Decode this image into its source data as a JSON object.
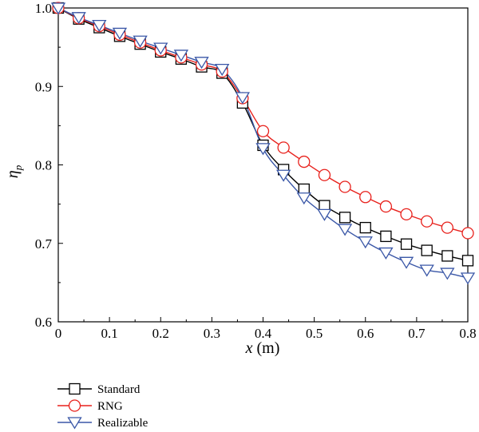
{
  "chart_data": {
    "type": "line",
    "xlabel_italic": "x",
    "xlabel_unit": " (m)",
    "ylabel_base": "η",
    "ylabel_sub": "p",
    "xlim": [
      0,
      0.8
    ],
    "ylim": [
      0.6,
      1.0
    ],
    "x_ticks": [
      "0",
      "0.1",
      "0.2",
      "0.3",
      "0.4",
      "0.5",
      "0.6",
      "0.7",
      "0.8"
    ],
    "y_ticks": [
      "0.6",
      "0.7",
      "0.8",
      "0.9",
      "1.0"
    ],
    "legend_position": "bottom-left",
    "series": [
      {
        "name": "Standard",
        "color": "#000000",
        "marker": "square",
        "x": [
          0,
          0.04,
          0.08,
          0.12,
          0.16,
          0.2,
          0.24,
          0.28,
          0.32,
          0.36,
          0.4,
          0.44,
          0.48,
          0.52,
          0.56,
          0.6,
          0.64,
          0.68,
          0.72,
          0.76,
          0.8
        ],
        "y": [
          1.0,
          0.986,
          0.975,
          0.964,
          0.954,
          0.944,
          0.935,
          0.925,
          0.917,
          0.879,
          0.825,
          0.794,
          0.769,
          0.748,
          0.733,
          0.72,
          0.709,
          0.699,
          0.691,
          0.684,
          0.678
        ]
      },
      {
        "name": "RNG",
        "color": "#e8211c",
        "marker": "circle",
        "x": [
          0,
          0.04,
          0.08,
          0.12,
          0.16,
          0.2,
          0.24,
          0.28,
          0.32,
          0.36,
          0.4,
          0.44,
          0.48,
          0.52,
          0.56,
          0.6,
          0.64,
          0.68,
          0.72,
          0.76,
          0.8
        ],
        "y": [
          1.0,
          0.987,
          0.977,
          0.966,
          0.956,
          0.946,
          0.937,
          0.928,
          0.919,
          0.885,
          0.843,
          0.822,
          0.804,
          0.787,
          0.772,
          0.759,
          0.747,
          0.737,
          0.728,
          0.72,
          0.713
        ]
      },
      {
        "name": "Realizable",
        "color": "#3a57a7",
        "marker": "triangle-down",
        "x": [
          0,
          0.04,
          0.08,
          0.12,
          0.16,
          0.2,
          0.24,
          0.28,
          0.32,
          0.36,
          0.4,
          0.44,
          0.48,
          0.52,
          0.56,
          0.6,
          0.64,
          0.68,
          0.72,
          0.76,
          0.8
        ],
        "y": [
          1.0,
          0.988,
          0.978,
          0.968,
          0.958,
          0.949,
          0.94,
          0.931,
          0.922,
          0.886,
          0.821,
          0.787,
          0.758,
          0.737,
          0.718,
          0.702,
          0.688,
          0.676,
          0.666,
          0.662,
          0.656
        ]
      }
    ]
  }
}
